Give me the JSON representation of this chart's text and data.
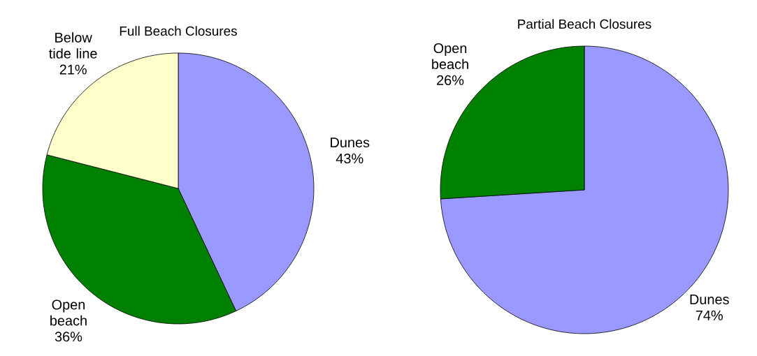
{
  "chart_data": [
    {
      "type": "pie",
      "title": "Full Beach Closures",
      "categories": [
        "Dunes",
        "Open beach",
        "Below tide line"
      ],
      "values": [
        43,
        36,
        21
      ],
      "colors": [
        "#9999ff",
        "#008000",
        "#ffffcc"
      ],
      "value_labels": [
        "43%",
        "36%",
        "21%"
      ]
    },
    {
      "type": "pie",
      "title": "Partial Beach Closures",
      "categories": [
        "Dunes",
        "Open beach"
      ],
      "values": [
        74,
        26
      ],
      "colors": [
        "#9999ff",
        "#008000"
      ],
      "value_labels": [
        "74%",
        "26%"
      ]
    }
  ]
}
